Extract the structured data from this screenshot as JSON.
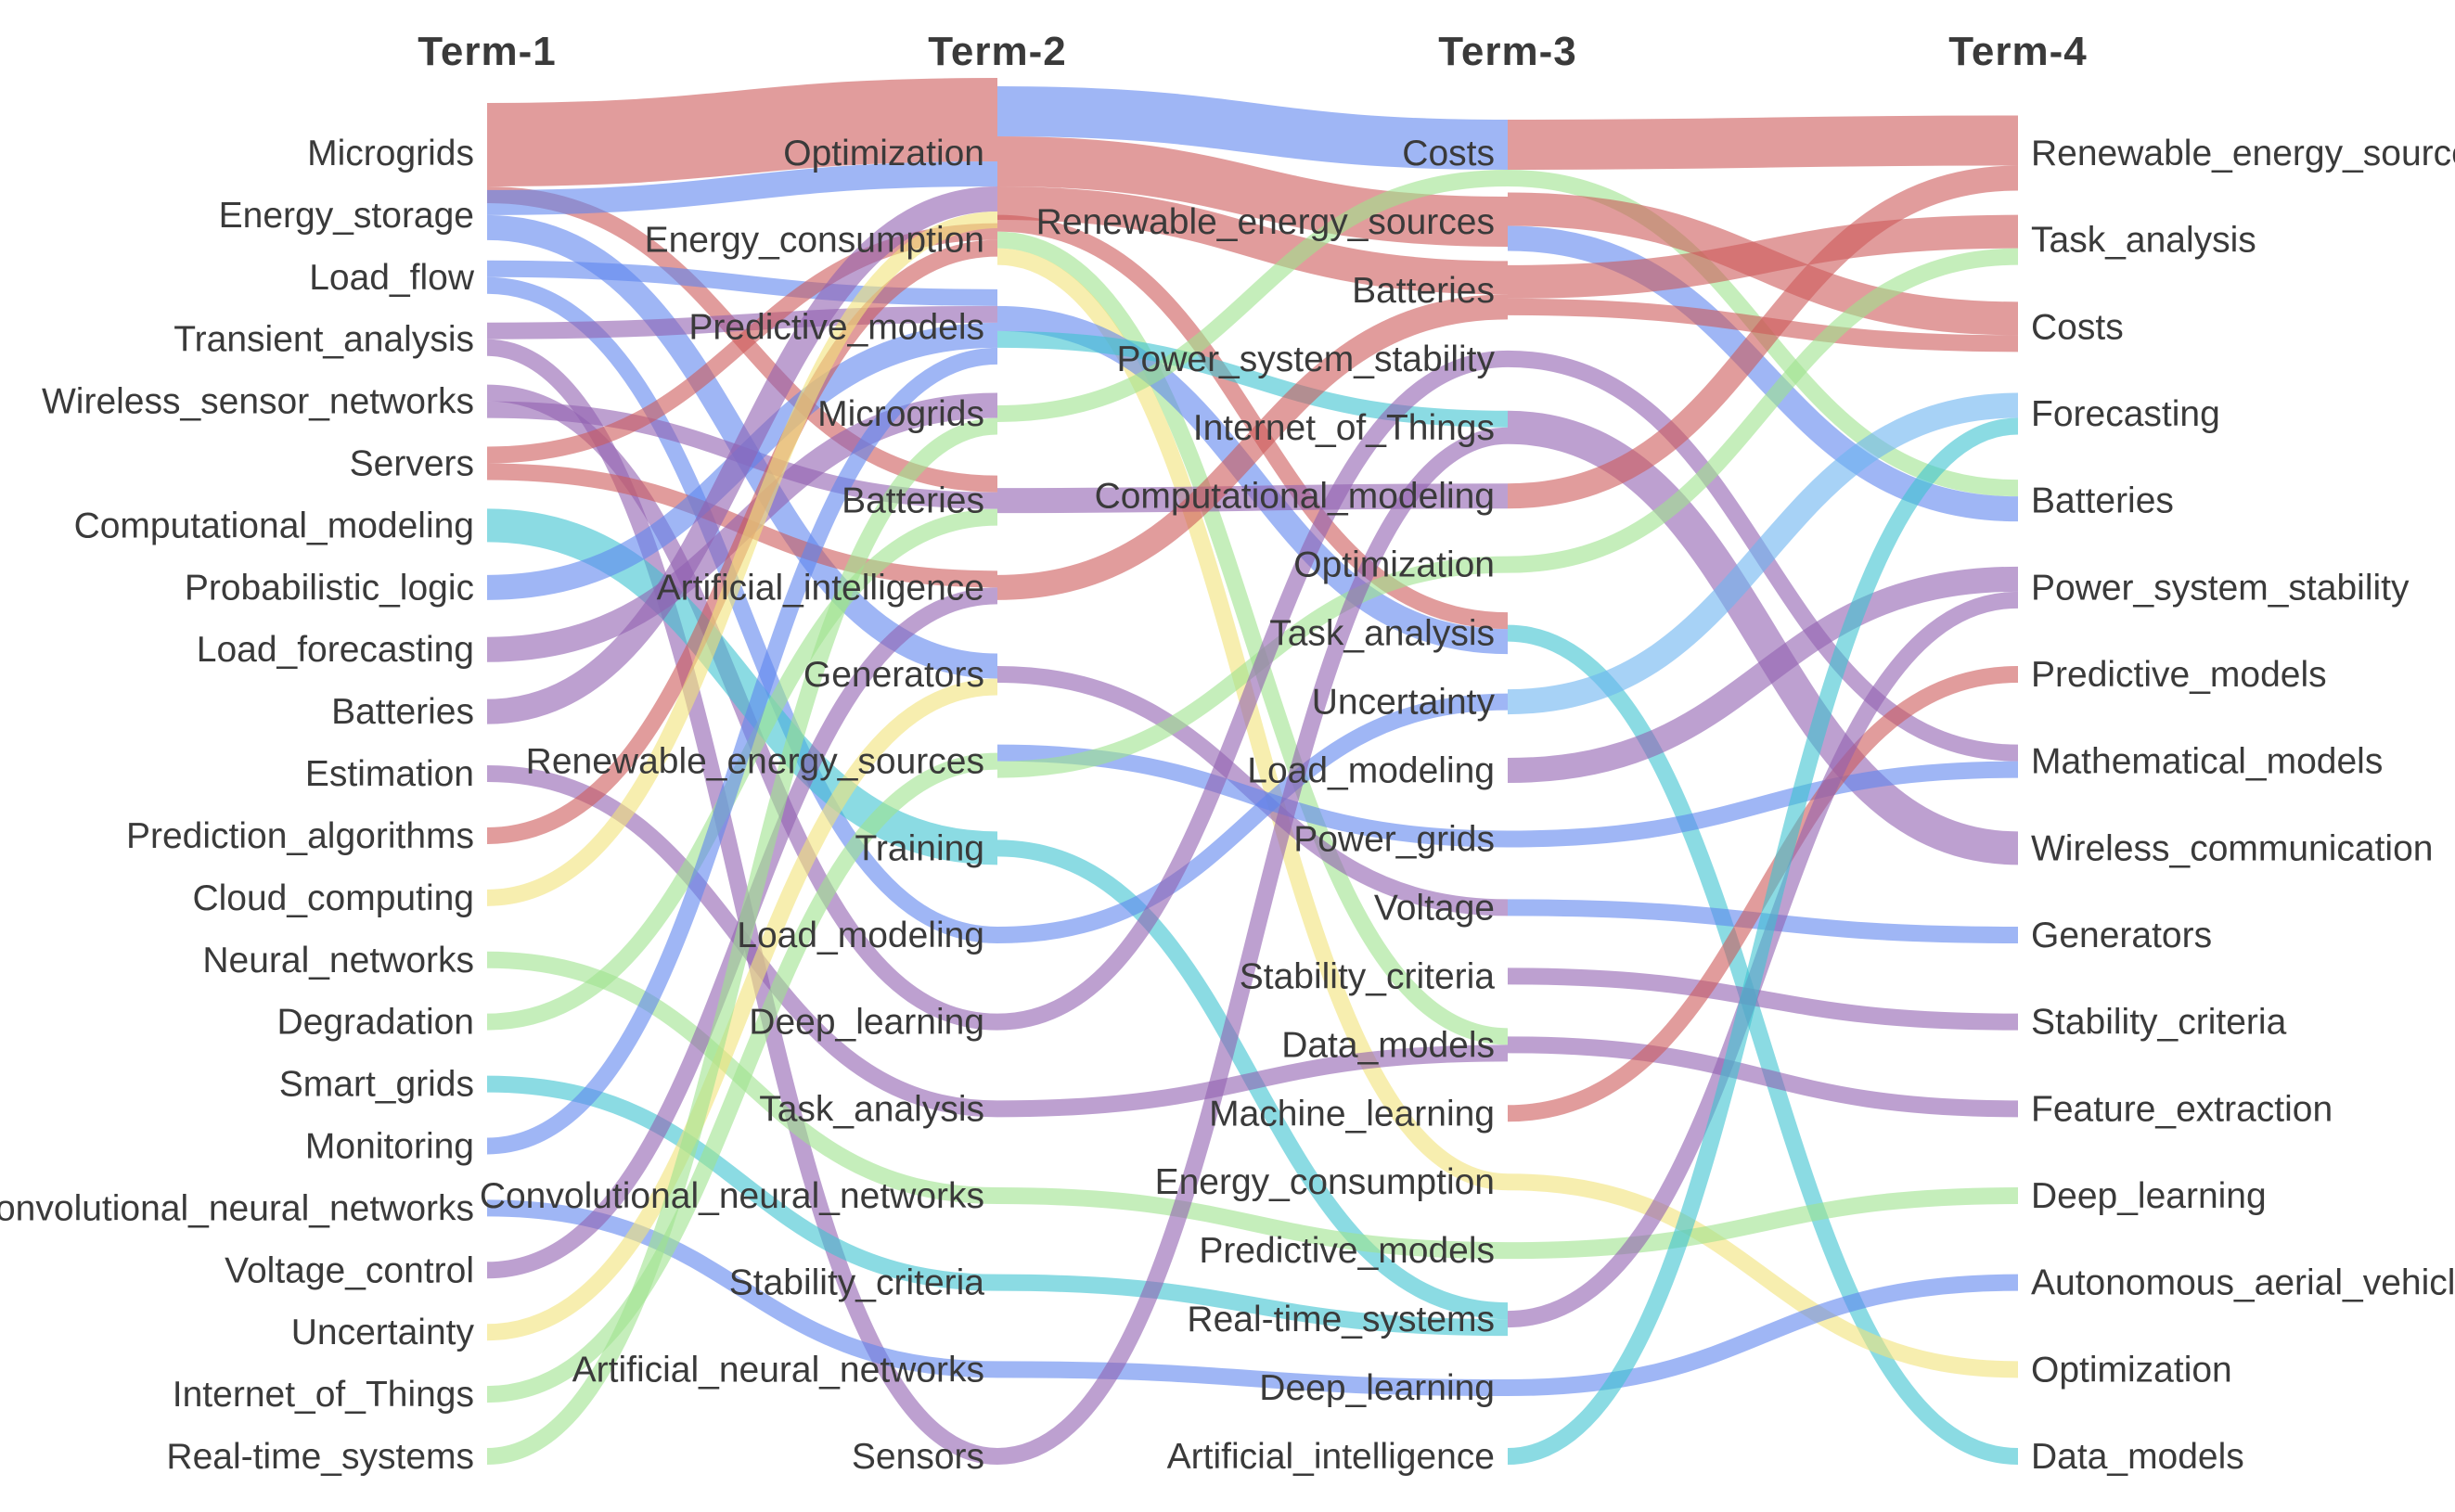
{
  "chart_data": {
    "type": "alluvial",
    "title": "",
    "colors": {
      "red": "#cd5a5a",
      "blue": "#5f86ee",
      "purple": "#9160b0",
      "teal": "#3ec3d0",
      "green": "#9fe38e",
      "yellow": "#f2e27a",
      "lightblue": "#6cb4f0"
    },
    "terms": [
      {
        "title": "Term-1",
        "nodes": [
          "Microgrids",
          "Energy_storage",
          "Load_flow",
          "Transient_analysis",
          "Wireless_sensor_networks",
          "Servers",
          "Computational_modeling",
          "Probabilistic_logic",
          "Load_forecasting",
          "Batteries",
          "Estimation",
          "Prediction_algorithms",
          "Cloud_computing",
          "Neural_networks",
          "Degradation",
          "Smart_grids",
          "Monitoring",
          "Convolutional_neural_networks",
          "Voltage_control",
          "Uncertainty",
          "Internet_of_Things",
          "Real-time_systems"
        ]
      },
      {
        "title": "Term-2",
        "nodes": [
          "Optimization",
          "Energy_consumption",
          "Predictive_models",
          "Microgrids",
          "Batteries",
          "Artificial_intelligence",
          "Generators",
          "Renewable_energy_sources",
          "Training",
          "Load_modeling",
          "Deep_learning",
          "Task_analysis",
          "Convolutional_neural_networks",
          "Stability_criteria",
          "Artificial_neural_networks",
          "Sensors"
        ]
      },
      {
        "title": "Term-3",
        "nodes": [
          "Costs",
          "Renewable_energy_sources",
          "Batteries",
          "Power_system_stability",
          "Internet_of_Things",
          "Computational_modeling",
          "Optimization",
          "Task_analysis",
          "Uncertainty",
          "Load_modeling",
          "Power_grids",
          "Voltage",
          "Stability_criteria",
          "Data_models",
          "Machine_learning",
          "Energy_consumption",
          "Predictive_models",
          "Real-time_systems",
          "Deep_learning",
          "Artificial_intelligence"
        ]
      },
      {
        "title": "Term-4",
        "nodes": [
          "Renewable_energy_sources",
          "Task_analysis",
          "Costs",
          "Forecasting",
          "Batteries",
          "Power_system_stability",
          "Predictive_models",
          "Mathematical_models",
          "Wireless_communication",
          "Generators",
          "Stability_criteria",
          "Feature_extraction",
          "Deep_learning",
          "Autonomous_aerial_vehicles",
          "Optimization",
          "Data_models"
        ]
      }
    ],
    "flows": [
      {
        "stage": 0,
        "from": "Microgrids",
        "to": "Optimization",
        "value": 5,
        "color": "red"
      },
      {
        "stage": 0,
        "from": "Microgrids",
        "to": "Batteries",
        "value": 1,
        "color": "red"
      },
      {
        "stage": 0,
        "from": "Energy_storage",
        "to": "Optimization",
        "value": 1.5,
        "color": "blue"
      },
      {
        "stage": 0,
        "from": "Energy_storage",
        "to": "Generators",
        "value": 1.5,
        "color": "blue"
      },
      {
        "stage": 0,
        "from": "Load_flow",
        "to": "Predictive_models",
        "value": 1,
        "color": "blue"
      },
      {
        "stage": 0,
        "from": "Load_flow",
        "to": "Load_modeling",
        "value": 1,
        "color": "blue"
      },
      {
        "stage": 0,
        "from": "Transient_analysis",
        "to": "Predictive_models",
        "value": 1,
        "color": "purple"
      },
      {
        "stage": 0,
        "from": "Transient_analysis",
        "to": "Sensors",
        "value": 1,
        "color": "purple"
      },
      {
        "stage": 0,
        "from": "Wireless_sensor_networks",
        "to": "Deep_learning",
        "value": 1,
        "color": "purple"
      },
      {
        "stage": 0,
        "from": "Wireless_sensor_networks",
        "to": "Batteries",
        "value": 1,
        "color": "purple"
      },
      {
        "stage": 0,
        "from": "Servers",
        "to": "Energy_consumption",
        "value": 1,
        "color": "red"
      },
      {
        "stage": 0,
        "from": "Servers",
        "to": "Artificial_intelligence",
        "value": 1,
        "color": "red"
      },
      {
        "stage": 0,
        "from": "Computational_modeling",
        "to": "Training",
        "value": 2,
        "color": "teal"
      },
      {
        "stage": 0,
        "from": "Probabilistic_logic",
        "to": "Predictive_models",
        "value": 1.5,
        "color": "blue"
      },
      {
        "stage": 0,
        "from": "Load_forecasting",
        "to": "Microgrids",
        "value": 1.5,
        "color": "purple"
      },
      {
        "stage": 0,
        "from": "Batteries",
        "to": "Optimization",
        "value": 1.5,
        "color": "purple"
      },
      {
        "stage": 0,
        "from": "Estimation",
        "to": "Task_analysis",
        "value": 1,
        "color": "purple"
      },
      {
        "stage": 0,
        "from": "Prediction_algorithms",
        "to": "Energy_consumption",
        "value": 1,
        "color": "red"
      },
      {
        "stage": 0,
        "from": "Cloud_computing",
        "to": "Optimization",
        "value": 1,
        "color": "yellow"
      },
      {
        "stage": 0,
        "from": "Neural_networks",
        "to": "Convolutional_neural_networks",
        "value": 1,
        "color": "green"
      },
      {
        "stage": 0,
        "from": "Degradation",
        "to": "Batteries",
        "value": 1,
        "color": "green"
      },
      {
        "stage": 0,
        "from": "Smart_grids",
        "to": "Stability_criteria",
        "value": 1,
        "color": "teal"
      },
      {
        "stage": 0,
        "from": "Monitoring",
        "to": "Predictive_models",
        "value": 1,
        "color": "blue"
      },
      {
        "stage": 0,
        "from": "Convolutional_neural_networks",
        "to": "Artificial_neural_networks",
        "value": 1,
        "color": "blue"
      },
      {
        "stage": 0,
        "from": "Voltage_control",
        "to": "Artificial_intelligence",
        "value": 1,
        "color": "purple"
      },
      {
        "stage": 0,
        "from": "Uncertainty",
        "to": "Generators",
        "value": 1,
        "color": "yellow"
      },
      {
        "stage": 0,
        "from": "Internet_of_Things",
        "to": "Renewable_energy_sources",
        "value": 1,
        "color": "green"
      },
      {
        "stage": 0,
        "from": "Real-time_systems",
        "to": "Microgrids",
        "value": 1,
        "color": "green"
      },
      {
        "stage": 1,
        "from": "Optimization",
        "to": "Costs",
        "value": 3,
        "color": "blue"
      },
      {
        "stage": 1,
        "from": "Optimization",
        "to": "Renewable_energy_sources",
        "value": 3,
        "color": "red"
      },
      {
        "stage": 1,
        "from": "Optimization",
        "to": "Batteries",
        "value": 2,
        "color": "red"
      },
      {
        "stage": 1,
        "from": "Energy_consumption",
        "to": "Task_analysis",
        "value": 1,
        "color": "red"
      },
      {
        "stage": 1,
        "from": "Energy_consumption",
        "to": "Data_models",
        "value": 1,
        "color": "green"
      },
      {
        "stage": 1,
        "from": "Energy_consumption",
        "to": "Energy_consumption",
        "value": 1,
        "color": "yellow"
      },
      {
        "stage": 1,
        "from": "Predictive_models",
        "to": "Task_analysis",
        "value": 1.5,
        "color": "blue"
      },
      {
        "stage": 1,
        "from": "Predictive_models",
        "to": "Internet_of_Things",
        "value": 1,
        "color": "teal"
      },
      {
        "stage": 1,
        "from": "Microgrids",
        "to": "Costs",
        "value": 1,
        "color": "green"
      },
      {
        "stage": 1,
        "from": "Batteries",
        "to": "Computational_modeling",
        "value": 1.5,
        "color": "purple"
      },
      {
        "stage": 1,
        "from": "Artificial_intelligence",
        "to": "Batteries",
        "value": 1.5,
        "color": "red"
      },
      {
        "stage": 1,
        "from": "Generators",
        "to": "Voltage",
        "value": 1,
        "color": "purple"
      },
      {
        "stage": 1,
        "from": "Renewable_energy_sources",
        "to": "Power_grids",
        "value": 1,
        "color": "blue"
      },
      {
        "stage": 1,
        "from": "Renewable_energy_sources",
        "to": "Optimization",
        "value": 1,
        "color": "green"
      },
      {
        "stage": 1,
        "from": "Training",
        "to": "Real-time_systems",
        "value": 1,
        "color": "teal"
      },
      {
        "stage": 1,
        "from": "Load_modeling",
        "to": "Uncertainty",
        "value": 1,
        "color": "blue"
      },
      {
        "stage": 1,
        "from": "Deep_learning",
        "to": "Power_system_stability",
        "value": 1,
        "color": "purple"
      },
      {
        "stage": 1,
        "from": "Task_analysis",
        "to": "Data_models",
        "value": 1,
        "color": "purple"
      },
      {
        "stage": 1,
        "from": "Convolutional_neural_networks",
        "to": "Predictive_models",
        "value": 1,
        "color": "green"
      },
      {
        "stage": 1,
        "from": "Stability_criteria",
        "to": "Real-time_systems",
        "value": 1,
        "color": "teal"
      },
      {
        "stage": 1,
        "from": "Artificial_neural_networks",
        "to": "Deep_learning",
        "value": 1,
        "color": "blue"
      },
      {
        "stage": 1,
        "from": "Sensors",
        "to": "Internet_of_Things",
        "value": 1,
        "color": "purple"
      },
      {
        "stage": 2,
        "from": "Costs",
        "to": "Renewable_energy_sources",
        "value": 3,
        "color": "red"
      },
      {
        "stage": 2,
        "from": "Costs",
        "to": "Batteries",
        "value": 1,
        "color": "green"
      },
      {
        "stage": 2,
        "from": "Renewable_energy_sources",
        "to": "Costs",
        "value": 2,
        "color": "red"
      },
      {
        "stage": 2,
        "from": "Renewable_energy_sources",
        "to": "Batteries",
        "value": 1.5,
        "color": "blue"
      },
      {
        "stage": 2,
        "from": "Batteries",
        "to": "Task_analysis",
        "value": 2,
        "color": "red"
      },
      {
        "stage": 2,
        "from": "Batteries",
        "to": "Costs",
        "value": 1,
        "color": "red"
      },
      {
        "stage": 2,
        "from": "Power_system_stability",
        "to": "Mathematical_models",
        "value": 1,
        "color": "purple"
      },
      {
        "stage": 2,
        "from": "Internet_of_Things",
        "to": "Wireless_communication",
        "value": 2,
        "color": "purple"
      },
      {
        "stage": 2,
        "from": "Computational_modeling",
        "to": "Renewable_energy_sources",
        "value": 1.5,
        "color": "red"
      },
      {
        "stage": 2,
        "from": "Optimization",
        "to": "Task_analysis",
        "value": 1,
        "color": "green"
      },
      {
        "stage": 2,
        "from": "Task_analysis",
        "to": "Data_models",
        "value": 1,
        "color": "teal"
      },
      {
        "stage": 2,
        "from": "Uncertainty",
        "to": "Forecasting",
        "value": 1.5,
        "color": "lightblue"
      },
      {
        "stage": 2,
        "from": "Load_modeling",
        "to": "Power_system_stability",
        "value": 1.5,
        "color": "purple"
      },
      {
        "stage": 2,
        "from": "Power_grids",
        "to": "Mathematical_models",
        "value": 1,
        "color": "blue"
      },
      {
        "stage": 2,
        "from": "Voltage",
        "to": "Generators",
        "value": 1,
        "color": "blue"
      },
      {
        "stage": 2,
        "from": "Stability_criteria",
        "to": "Stability_criteria",
        "value": 1,
        "color": "purple"
      },
      {
        "stage": 2,
        "from": "Data_models",
        "to": "Feature_extraction",
        "value": 1,
        "color": "purple"
      },
      {
        "stage": 2,
        "from": "Machine_learning",
        "to": "Predictive_models",
        "value": 1,
        "color": "red"
      },
      {
        "stage": 2,
        "from": "Energy_consumption",
        "to": "Optimization",
        "value": 1,
        "color": "yellow"
      },
      {
        "stage": 2,
        "from": "Predictive_models",
        "to": "Deep_learning",
        "value": 1,
        "color": "green"
      },
      {
        "stage": 2,
        "from": "Real-time_systems",
        "to": "Power_system_stability",
        "value": 1,
        "color": "purple"
      },
      {
        "stage": 2,
        "from": "Deep_learning",
        "to": "Autonomous_aerial_vehicles",
        "value": 1,
        "color": "blue"
      },
      {
        "stage": 2,
        "from": "Artificial_intelligence",
        "to": "Forecasting",
        "value": 1,
        "color": "teal"
      }
    ]
  }
}
